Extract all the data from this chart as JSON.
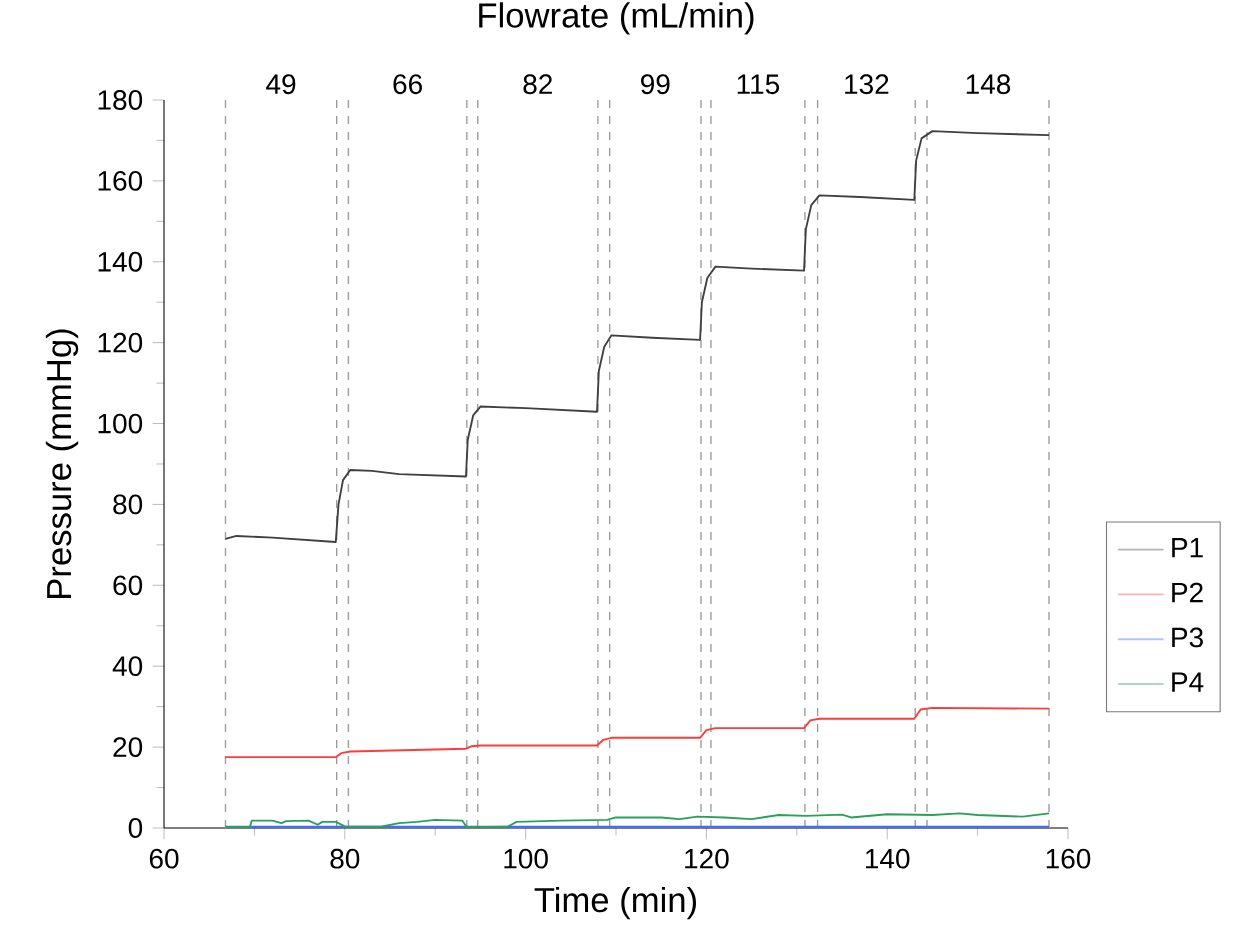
{
  "chart_data": {
    "type": "line",
    "title": "Flowrate (mL/min)",
    "xlabel": "Time (min)",
    "ylabel": "Pressure (mmHg)",
    "xlim": [
      60,
      160
    ],
    "xticks": [
      60,
      80,
      100,
      120,
      140,
      160
    ],
    "ylim": [
      0,
      180
    ],
    "yticks": [
      0,
      20,
      40,
      60,
      80,
      100,
      120,
      140,
      160,
      180
    ],
    "grid": false,
    "legend": "right",
    "marker": "none",
    "line_style": "solid",
    "annotations": [
      "49",
      "66",
      "82",
      "99",
      "115",
      "132",
      "148"
    ],
    "ref_lines": [
      {
        "axis": "x",
        "value": 66.8,
        "color": "#999999",
        "line_style": "dashed"
      },
      {
        "axis": "x",
        "value": 79.1,
        "color": "#999999",
        "line_style": "dashed"
      },
      {
        "axis": "x",
        "value": 80.4,
        "color": "#999999",
        "line_style": "dashed"
      },
      {
        "axis": "x",
        "value": 93.5,
        "color": "#999999",
        "line_style": "dashed"
      },
      {
        "axis": "x",
        "value": 94.7,
        "color": "#999999",
        "line_style": "dashed"
      },
      {
        "axis": "x",
        "value": 108.0,
        "color": "#999999",
        "line_style": "dashed"
      },
      {
        "axis": "x",
        "value": 109.3,
        "color": "#999999",
        "line_style": "dashed"
      },
      {
        "axis": "x",
        "value": 119.4,
        "color": "#999999",
        "line_style": "dashed"
      },
      {
        "axis": "x",
        "value": 120.5,
        "color": "#999999",
        "line_style": "dashed"
      },
      {
        "axis": "x",
        "value": 130.9,
        "color": "#999999",
        "line_style": "dashed"
      },
      {
        "axis": "x",
        "value": 132.3,
        "color": "#999999",
        "line_style": "dashed"
      },
      {
        "axis": "x",
        "value": 143.1,
        "color": "#999999",
        "line_style": "dashed"
      },
      {
        "axis": "x",
        "value": 144.4,
        "color": "#999999",
        "line_style": "dashed"
      },
      {
        "axis": "x",
        "value": 157.9,
        "color": "#999999",
        "line_style": "dashed"
      }
    ],
    "series": [
      {
        "name": "P1",
        "color": "#404040",
        "x": [
          66.8,
          68,
          72,
          79,
          79.3,
          79.8,
          80.6,
          83,
          86,
          93.4,
          93.6,
          94.2,
          95,
          100,
          107.9,
          108.1,
          108.7,
          109.5,
          114,
          119.3,
          119.5,
          120.1,
          121,
          125,
          130.8,
          131,
          131.6,
          132.5,
          137,
          143,
          143.2,
          143.8,
          145,
          150,
          157.9
        ],
        "values": [
          71.5,
          72.2,
          71.8,
          70.7,
          80,
          86,
          88.5,
          88.3,
          87.5,
          86.9,
          96,
          102,
          104.2,
          103.8,
          102.9,
          113,
          119,
          121.8,
          121.2,
          120.7,
          130,
          136,
          138.8,
          138.3,
          137.8,
          148,
          154,
          156.4,
          156,
          155.3,
          165,
          170.5,
          172.3,
          171.8,
          171.3
        ]
      },
      {
        "name": "P2",
        "color": "#ff3b3b",
        "x": [
          66.8,
          79,
          79.6,
          80.6,
          93.4,
          94,
          95,
          107.9,
          108.6,
          109.5,
          119.3,
          120,
          121,
          130.8,
          131.5,
          132.5,
          143,
          143.7,
          145,
          157.9
        ],
        "values": [
          17.5,
          17.5,
          18.5,
          18.9,
          19.6,
          20.2,
          20.4,
          20.4,
          21.8,
          22.3,
          22.3,
          24.2,
          24.7,
          24.7,
          26.6,
          27.0,
          27.0,
          29.3,
          29.7,
          29.5
        ]
      },
      {
        "name": "P3",
        "color": "#3b6cff",
        "x": [
          66.8,
          157.9
        ],
        "values": [
          0.3,
          0.3
        ]
      },
      {
        "name": "P4",
        "color": "#2aa05a",
        "x": [
          66.8,
          69.5,
          69.7,
          72,
          73,
          73.5,
          76,
          77,
          77.5,
          79,
          80,
          84,
          86,
          88,
          90,
          93,
          93.5,
          98,
          99,
          104,
          109,
          110,
          115,
          117,
          119,
          122,
          125,
          128,
          131,
          135,
          136,
          140,
          145,
          148,
          150,
          155,
          157.9
        ],
        "values": [
          0.2,
          0.3,
          1.8,
          1.8,
          1.2,
          1.7,
          1.8,
          0.8,
          1.5,
          1.5,
          0.4,
          0.3,
          1.2,
          1.5,
          2,
          1.8,
          0.2,
          0.3,
          1.5,
          1.8,
          2,
          2.6,
          2.6,
          2.2,
          2.8,
          2.6,
          2.2,
          3.2,
          3.0,
          3.3,
          2.6,
          3.4,
          3.2,
          3.6,
          3.2,
          2.8,
          3.6
        ]
      }
    ]
  }
}
